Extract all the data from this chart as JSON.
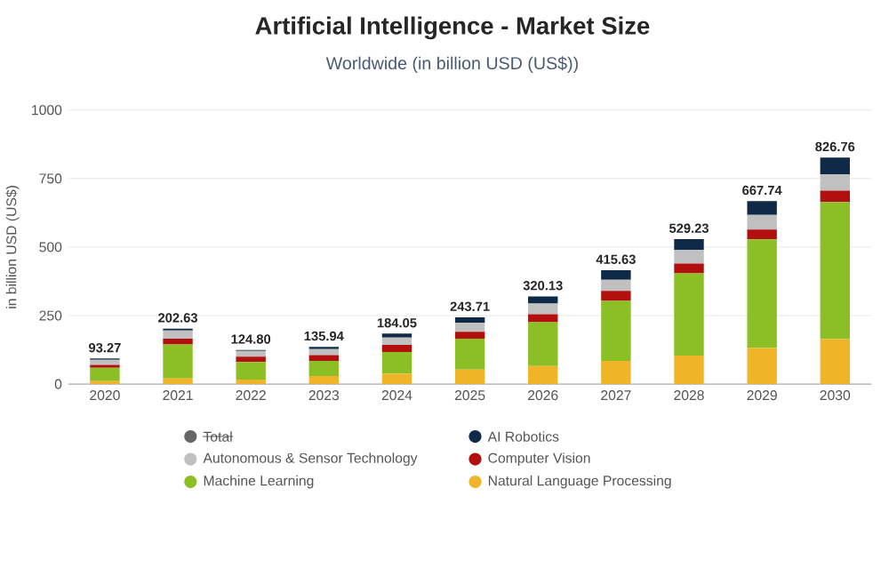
{
  "chart_data": {
    "type": "bar",
    "stacked": true,
    "title": "Artificial Intelligence - Market Size",
    "subtitle": "Worldwide (in billion USD (US$))",
    "ylabel": "in billion USD (US$)",
    "categories": [
      "2020",
      "2021",
      "2022",
      "2023",
      "2024",
      "2025",
      "2026",
      "2027",
      "2028",
      "2029",
      "2030"
    ],
    "series": [
      {
        "name": "Natural Language Processing",
        "color": "#f0b429",
        "values": [
          11,
          21,
          17,
          30,
          38,
          53,
          66,
          85,
          104,
          132,
          164
        ]
      },
      {
        "name": "Machine Learning",
        "color": "#8cbf26",
        "values": [
          49,
          124,
          64,
          55,
          79,
          113,
          160,
          219,
          300,
          396,
          500
        ]
      },
      {
        "name": "Computer Vision",
        "color": "#b20f0f",
        "values": [
          10,
          21,
          19,
          21,
          26,
          25,
          29,
          36,
          36,
          36,
          42
        ]
      },
      {
        "name": "Autonomous & Sensor Technology",
        "color": "#c0c0c0",
        "values": [
          19,
          30,
          21,
          22,
          27,
          32,
          39,
          41,
          49,
          53,
          60
        ]
      },
      {
        "name": "AI Robotics",
        "color": "#0f2a47",
        "values": [
          4.27,
          6.63,
          3.8,
          7.94,
          14.05,
          20.71,
          26.13,
          34.63,
          40.23,
          50.74,
          60.76
        ]
      },
      {
        "name": "Total",
        "color": "#666666",
        "values": [
          null,
          null,
          null,
          null,
          null,
          null,
          null,
          null,
          null,
          null,
          null
        ]
      }
    ],
    "totals": [
      "93.27",
      "202.63",
      "124.80",
      "135.94",
      "184.05",
      "243.71",
      "320.13",
      "415.63",
      "529.23",
      "667.74",
      "826.76"
    ],
    "ylim": [
      0,
      1000
    ],
    "yticks": [
      0,
      250,
      500,
      750,
      1000
    ],
    "grid": "y",
    "legend": "bottom"
  }
}
